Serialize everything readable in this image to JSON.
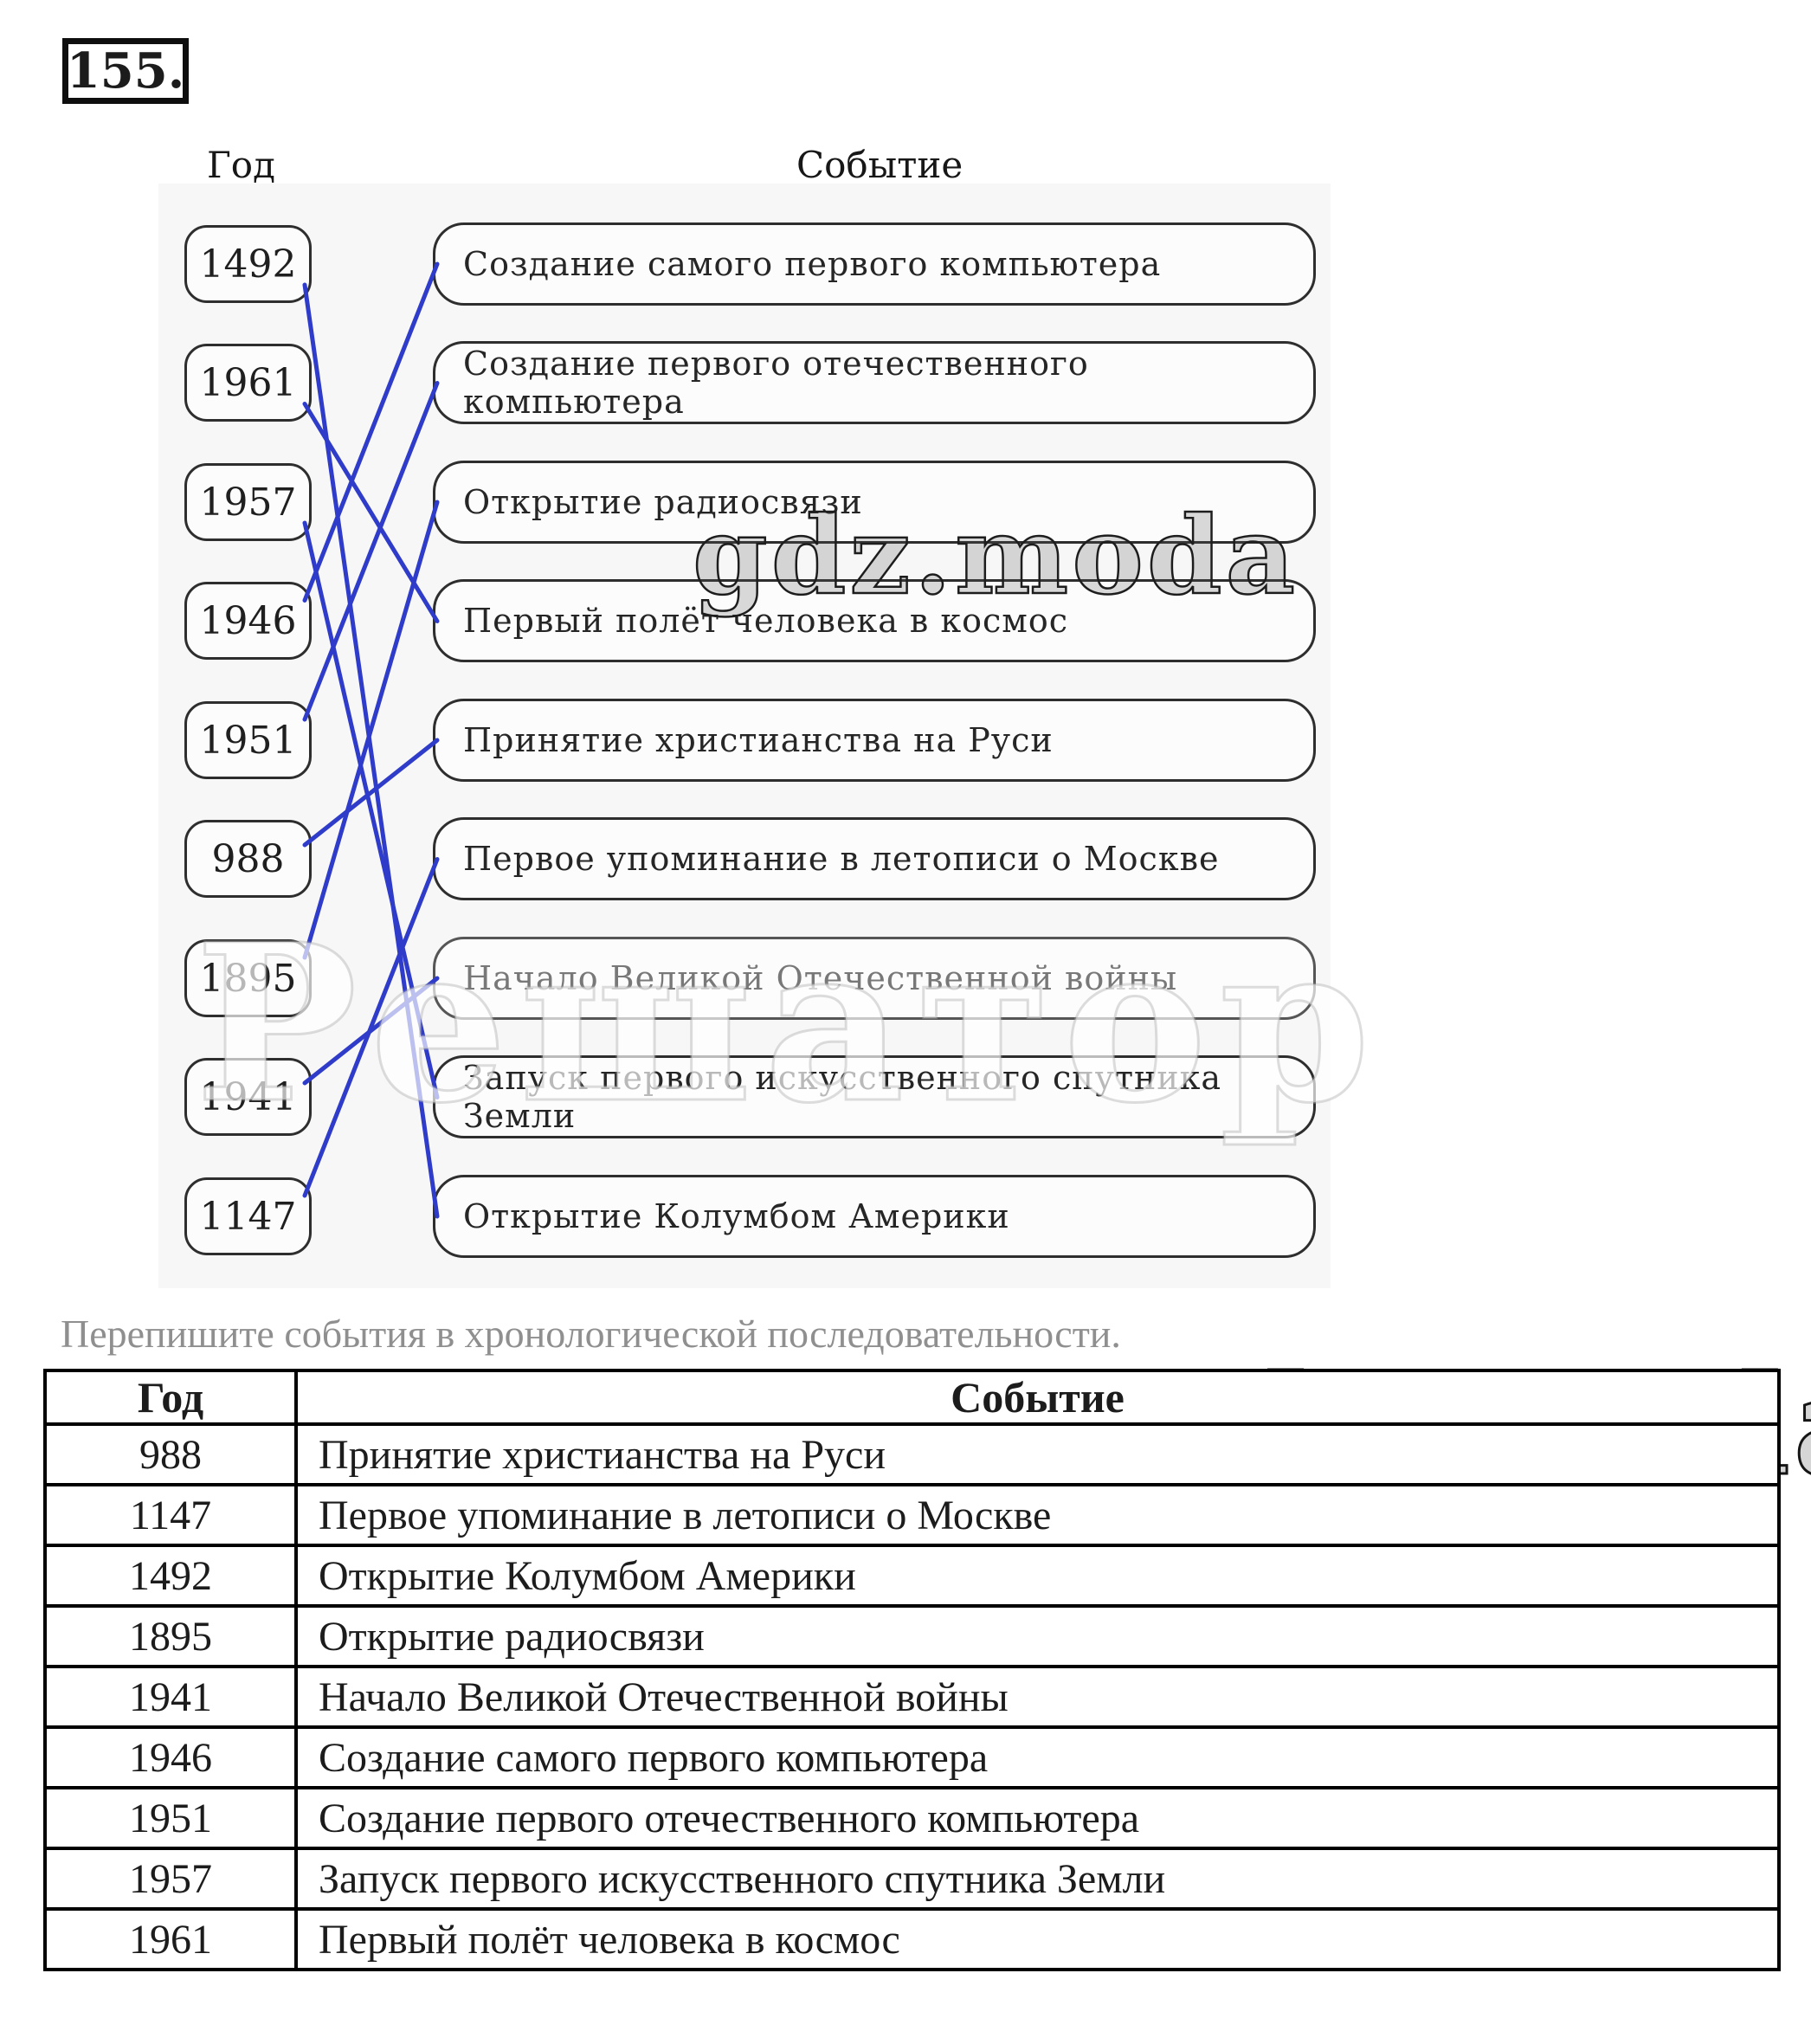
{
  "page": {
    "problem_number": "155."
  },
  "diagram": {
    "year_column_label": "Год",
    "event_column_label": "Событие",
    "line_color": "#2f3cc9",
    "years": [
      "1492",
      "1961",
      "1957",
      "1946",
      "1951",
      "988",
      "1895",
      "1941",
      "1147"
    ],
    "events": [
      "Создание самого первого компьютера",
      "Создание первого отечественного компьютера",
      "Открытие радиосвязи",
      "Первый полёт человека в космос",
      "Принятие христианства на Руси",
      "Первое упоминание в летописи о Москве",
      "Начало Великой Отечественной войны",
      "Запуск первого искусственного спутника Земли",
      "Открытие Колумбом Америки"
    ],
    "connections": [
      {
        "from": 0,
        "to": 8,
        "year": "1492",
        "event": "Открытие Колумбом Америки"
      },
      {
        "from": 1,
        "to": 3,
        "year": "1961",
        "event": "Первый полёт человека в космос"
      },
      {
        "from": 2,
        "to": 7,
        "year": "1957",
        "event": "Запуск первого искусственного спутника Земли"
      },
      {
        "from": 3,
        "to": 0,
        "year": "1946",
        "event": "Создание самого первого компьютера"
      },
      {
        "from": 4,
        "to": 1,
        "year": "1951",
        "event": "Создание первого отечественного компьютера"
      },
      {
        "from": 5,
        "to": 4,
        "year": "988",
        "event": "Принятие христианства на Руси"
      },
      {
        "from": 6,
        "to": 2,
        "year": "1895",
        "event": "Открытие радиосвязи"
      },
      {
        "from": 7,
        "to": 6,
        "year": "1941",
        "event": "Начало Великой Отечественной войны"
      },
      {
        "from": 8,
        "to": 5,
        "year": "1147",
        "event": "Первое упоминание в летописи о Москве"
      }
    ]
  },
  "instruction": "Перепишите события в хронологической последовательности.",
  "answer_table": {
    "headers": [
      "Год",
      "Событие"
    ],
    "rows": [
      [
        "988",
        "Принятие христианства на Руси"
      ],
      [
        "1147",
        "Первое упоминание в летописи о Москве"
      ],
      [
        "1492",
        "Открытие Колумбом Америки"
      ],
      [
        "1895",
        "Открытие радиосвязи"
      ],
      [
        "1941",
        "Начало Великой Отечественной войны"
      ],
      [
        "1946",
        "Создание самого первого компьютера"
      ],
      [
        "1951",
        "Создание первого отечественного компьютера"
      ],
      [
        "1957",
        "Запуск первого искусственного спутника Земли"
      ],
      [
        "1961",
        "Первый полёт человека в космос"
      ]
    ]
  },
  "watermarks": {
    "gdz_text": "gdz.moda",
    "overlay_text": "Решатор"
  }
}
